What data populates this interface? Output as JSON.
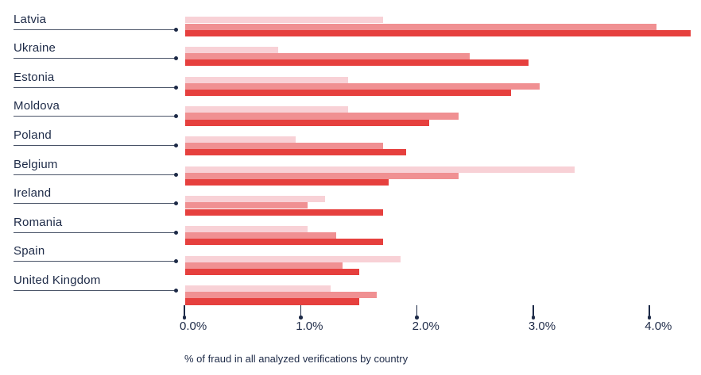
{
  "chart_data": {
    "type": "bar",
    "orientation": "horizontal",
    "title": "",
    "caption": "% of fraud in all analyzed verifications by country",
    "categories": [
      "Latvia",
      "Ukraine",
      "Estonia",
      "Moldova",
      "Poland",
      "Belgium",
      "Ireland",
      "Romania",
      "Spain",
      "United Kingdom"
    ],
    "series": [
      {
        "name": "light-pink-bar",
        "color": "#F8D1D6",
        "values": [
          1.7,
          0.8,
          1.4,
          1.4,
          0.95,
          3.35,
          1.2,
          1.05,
          1.85,
          1.25
        ]
      },
      {
        "name": "salmon-bar",
        "color": "#F09092",
        "values": [
          4.05,
          2.45,
          3.05,
          2.35,
          1.7,
          2.35,
          1.05,
          1.3,
          1.35,
          1.65
        ]
      },
      {
        "name": "red-bar",
        "color": "#E6403E",
        "values": [
          4.35,
          2.95,
          2.8,
          2.1,
          1.9,
          1.75,
          1.7,
          1.7,
          1.5,
          1.5
        ]
      }
    ],
    "x_axis": {
      "min": 0,
      "max": 4.4,
      "unit": "%",
      "tick_values": [
        0,
        1,
        2,
        3,
        4
      ],
      "tick_labels": [
        "0.0%",
        "1.0%",
        "2.0%",
        "3.0%",
        "4.0%"
      ]
    },
    "legend": "none",
    "grid": "off"
  },
  "colors": {
    "background": "#FFFFFF",
    "text_navy": "#1D2A47",
    "leader_line": "#4A5468",
    "light_pink": "#F8D1D6",
    "salmon": "#F09092",
    "red": "#E6403E"
  }
}
